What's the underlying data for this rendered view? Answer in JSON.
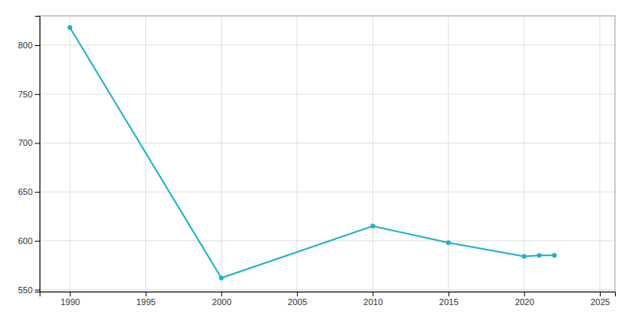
{
  "chart_data": {
    "type": "line",
    "x": [
      1990,
      2000,
      2010,
      2015,
      2020,
      2021,
      2022
    ],
    "values": [
      818,
      562,
      615,
      598,
      584,
      585,
      585
    ],
    "color": "#20B2C8",
    "marker": "o",
    "xlim": [
      1988,
      2026
    ],
    "ylim": [
      548,
      830
    ],
    "xticks": [
      1990,
      1995,
      2000,
      2005,
      2010,
      2015,
      2020,
      2025
    ],
    "yticks": [
      550,
      600,
      650,
      700,
      750,
      800
    ],
    "grid": true
  }
}
